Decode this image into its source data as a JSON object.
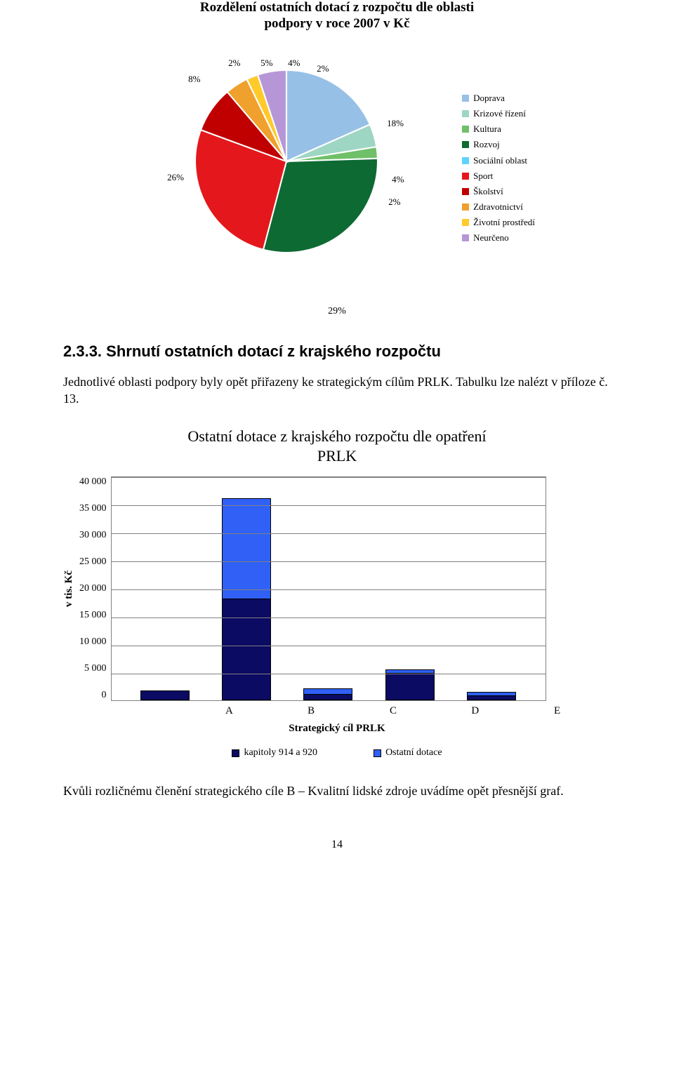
{
  "pie": {
    "title_l1": "Rozdělení ostatních dotací z rozpočtu dle oblasti",
    "title_l2": "podpory v roce 2007 v Kč",
    "slices": [
      {
        "name": "Doprava",
        "value": 18,
        "label": "18%",
        "color": "#97c0e6"
      },
      {
        "name": "Krizové řízení",
        "value": 4,
        "label": "4%",
        "color": "#9ed6c4"
      },
      {
        "name": "Kultura",
        "value": 2,
        "label": "2%",
        "color": "#6fc068"
      },
      {
        "name": "Rozvoj",
        "value": 29,
        "label": "29%",
        "color": "#0d6a33"
      },
      {
        "name": "Sociální oblast",
        "value": 0,
        "label": "",
        "color": "#5fd3ff"
      },
      {
        "name": "Sport",
        "value": 26,
        "label": "26%",
        "color": "#e4181c"
      },
      {
        "name": "Školství",
        "value": 8,
        "label": "8%",
        "color": "#c00000"
      },
      {
        "name": "Zdravotnictví",
        "value": 4,
        "label": "4%",
        "color": "#f0a02c"
      },
      {
        "name": "Životní prostředí",
        "value": 2,
        "label": "2%",
        "color": "#ffca2a"
      },
      {
        "name": "Neurčeno",
        "value": 5,
        "label": "5%",
        "color": "#b796d8"
      }
    ],
    "extra_labels": {
      "two_pct": "2%"
    },
    "separator_color": "#ffffff"
  },
  "section_heading": "2.3.3. Shrnutí ostatních dotací z krajského rozpočtu",
  "body": {
    "p1": "Jednotlivé oblasti podpory byly opět přiřazeny ke strategickým cílům PRLK. Tabulku lze nalézt v příloze č. 13.",
    "p2": "Kvůli rozličnému členění strategického cíle B – Kvalitní lidské zdroje uvádíme opět přesnější graf."
  },
  "bar": {
    "title_l1": "Ostatní dotace z krajského rozpočtu dle opatření",
    "title_l2": "PRLK",
    "y_label": "v tis. Kč",
    "x_label": "Strategický cíl PRLK",
    "ymax": 40000,
    "y_ticks": [
      "40 000",
      "35 000",
      "30 000",
      "25 000",
      "20 000",
      "15 000",
      "10 000",
      "5 000",
      "0"
    ],
    "categories": [
      "A",
      "B",
      "C",
      "D",
      "E"
    ],
    "series": [
      {
        "name": "kapitoly 914 a 920",
        "color": "#0b0b63",
        "values": [
          1800,
          18000,
          1000,
          4800,
          800
        ]
      },
      {
        "name": "Ostatní dotace",
        "color": "#3060f5",
        "values": [
          0,
          18000,
          1200,
          700,
          700
        ]
      }
    ],
    "border_color": "#808080",
    "plot_bg": "#ffffff"
  },
  "page_number": "14"
}
